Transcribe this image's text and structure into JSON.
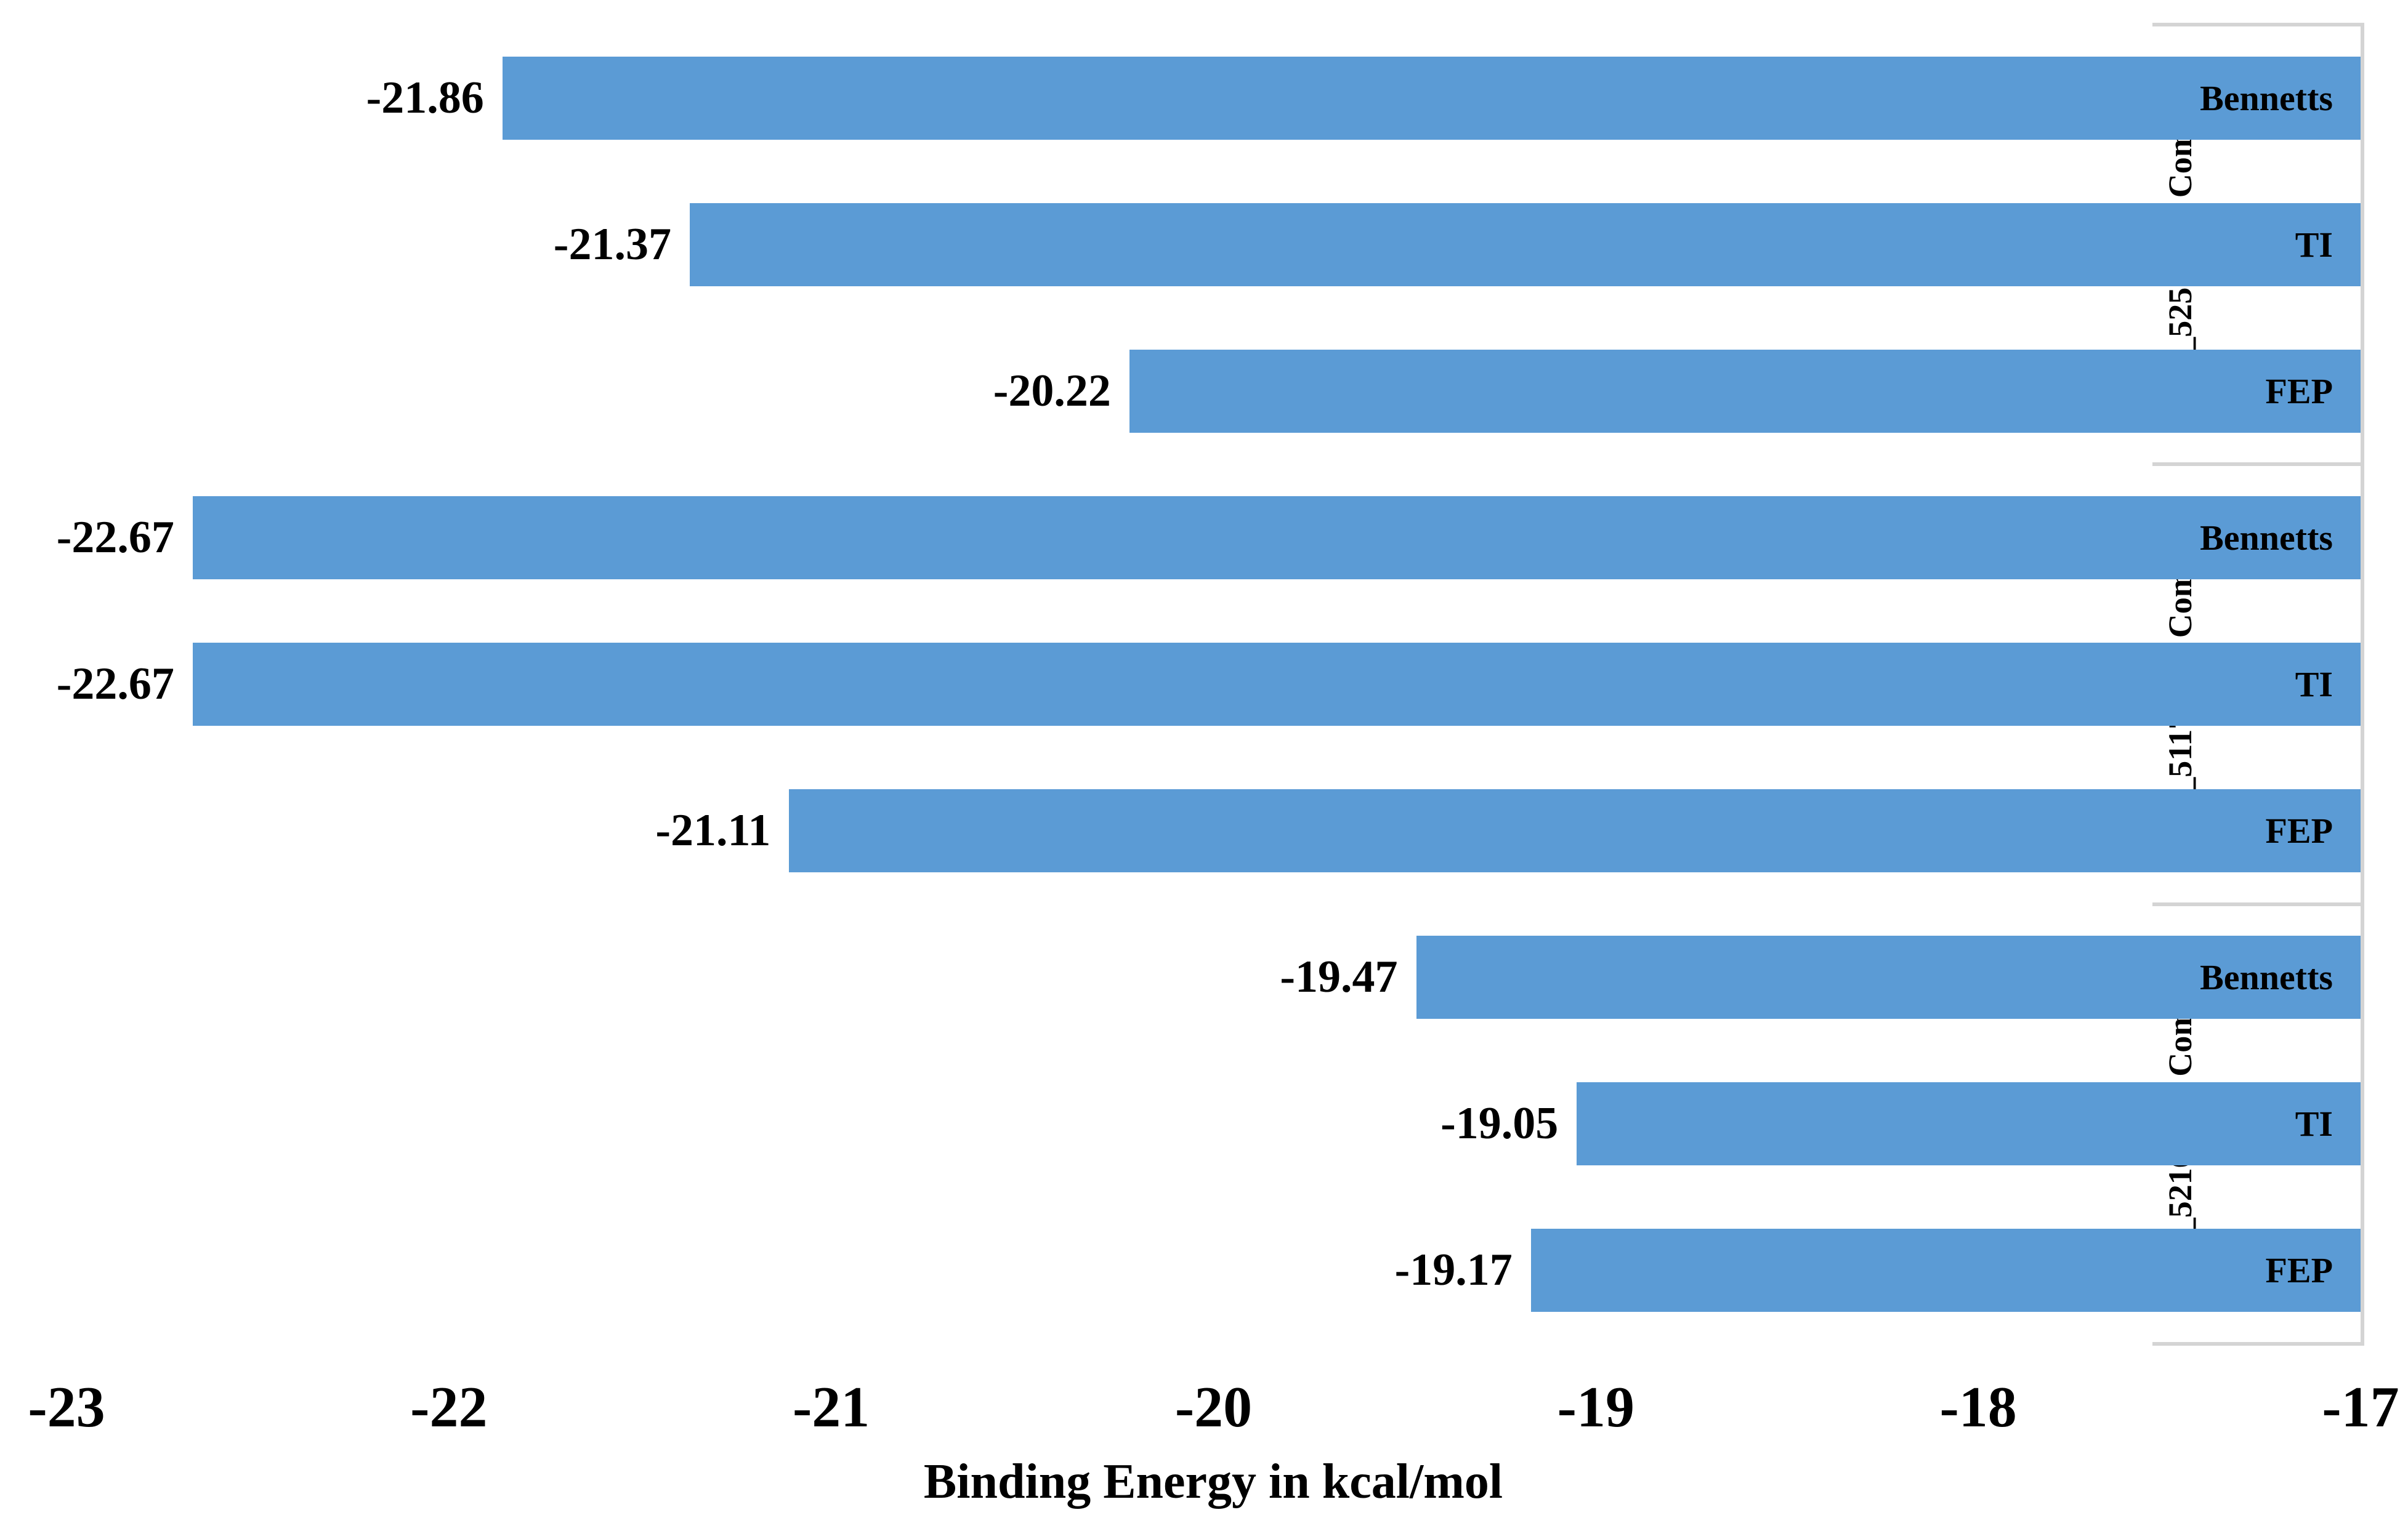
{
  "chart_data": {
    "type": "bar",
    "orientation": "horizontal",
    "xlabel": "Binding Energy in kcal/mol",
    "xlim": [
      -23,
      -17
    ],
    "x_ticks": [
      -23,
      -22,
      -21,
      -20,
      -19,
      -18,
      -17
    ],
    "x_tick_labels": [
      "-23",
      "-22",
      "-21",
      "-20",
      "-19",
      "-18",
      "-17"
    ],
    "bar_color": "#5B9BD5",
    "axis_line_color": "#D4D4D4",
    "text_color": "#000000",
    "grid": false,
    "legend": false,
    "value_anchor": -17,
    "groups": [
      {
        "name": "LAS_52506311 Complex",
        "bars": [
          {
            "method": "Bennetts",
            "value": -21.86,
            "label": "-21.86"
          },
          {
            "method": "TI",
            "value": -21.37,
            "label": "-21.37"
          },
          {
            "method": "FEP",
            "value": -20.22,
            "label": "-20.22"
          }
        ]
      },
      {
        "name": "LAS_51177972 Complex",
        "bars": [
          {
            "method": "Bennetts",
            "value": -22.67,
            "label": "-22.67"
          },
          {
            "method": "TI",
            "value": -22.67,
            "label": "-22.67"
          },
          {
            "method": "FEP",
            "value": -21.11,
            "label": "-21.11"
          }
        ]
      },
      {
        "name": "LAS_52160953 Complex",
        "bars": [
          {
            "method": "Bennetts",
            "value": -19.47,
            "label": "-19.47"
          },
          {
            "method": "TI",
            "value": -19.05,
            "label": "-19.05"
          },
          {
            "method": "FEP",
            "value": -19.17,
            "label": "-19.17"
          }
        ]
      }
    ]
  }
}
